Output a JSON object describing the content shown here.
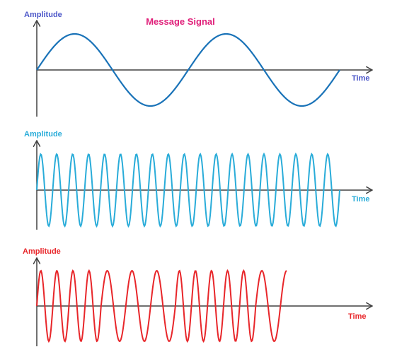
{
  "title": "Message Signal",
  "colors": {
    "title": "#e0207a",
    "message": "#1a73b8",
    "message_label": "#4a55c8",
    "carrier": "#29acd9",
    "modulated": "#e8262a",
    "axis": "#404040"
  },
  "panels": [
    {
      "name": "message",
      "y_label": "Amplitude",
      "x_label": "Time",
      "waveform": "sine",
      "cycles": 2
    },
    {
      "name": "carrier",
      "y_label": "Amplitude",
      "x_label": "Time",
      "waveform": "sine",
      "cycles": 19
    },
    {
      "name": "fsk-modulated",
      "y_label": "Amplitude",
      "x_label": "Time",
      "waveform": "frequency-modulated sine",
      "segments": [
        {
          "cycles": 4,
          "frequency": "high"
        },
        {
          "cycles": 3,
          "frequency": "low"
        },
        {
          "cycles": 5,
          "frequency": "high"
        },
        {
          "cycles": 1.25,
          "frequency": "low"
        }
      ]
    }
  ]
}
